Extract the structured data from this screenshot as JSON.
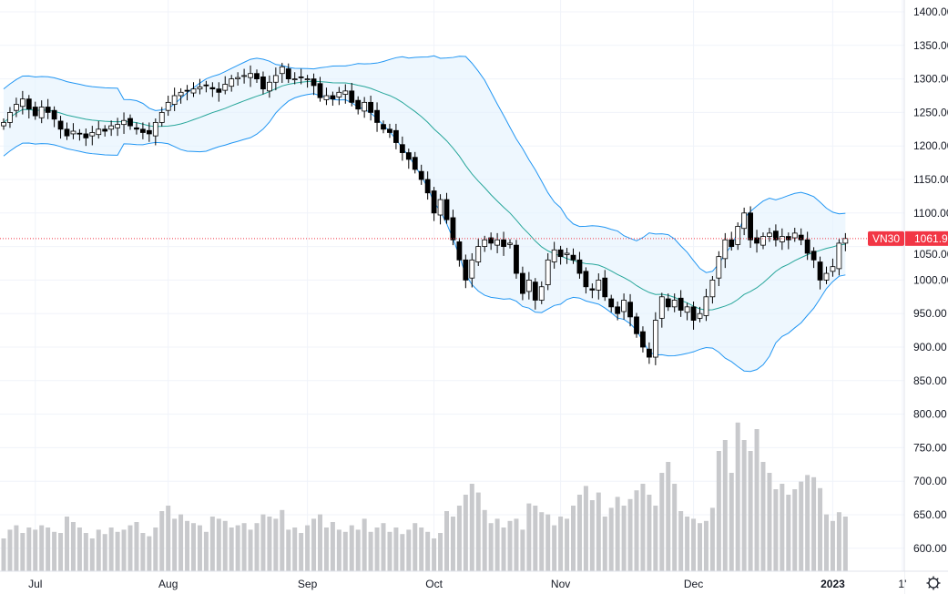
{
  "chart_data": {
    "type": "candlestick",
    "symbol": "VN30",
    "last_price_label": "1061.90",
    "last_price": 1061.9,
    "ylim": [
      575,
      1410
    ],
    "y_ticks": [
      600,
      650,
      700,
      750,
      800,
      850,
      900,
      950,
      1000,
      1050,
      1100,
      1150,
      1200,
      1250,
      1300,
      1350,
      1400
    ],
    "y_tick_labels": [
      "600.00",
      "650.00",
      "700.00",
      "750.00",
      "800.00",
      "850.00",
      "900.00",
      "950.00",
      "1000.00",
      "1050.00",
      "1100.00",
      "1150.00",
      "1200.00",
      "1250.00",
      "1300.00",
      "1350.00",
      "1400.00"
    ],
    "x_labels": [
      {
        "text": "Jul",
        "index": 5
      },
      {
        "text": "Aug",
        "index": 26
      },
      {
        "text": "Sep",
        "index": 48
      },
      {
        "text": "Oct",
        "index": 68
      },
      {
        "text": "Nov",
        "index": 88
      },
      {
        "text": "Dec",
        "index": 109
      },
      {
        "text": "2023",
        "index": 131,
        "bold": true
      },
      {
        "text": "1'",
        "index": 142
      }
    ],
    "closes": [
      1235,
      1250,
      1262,
      1270,
      1255,
      1245,
      1258,
      1250,
      1240,
      1225,
      1215,
      1222,
      1218,
      1212,
      1220,
      1225,
      1222,
      1230,
      1232,
      1238,
      1230,
      1225,
      1220,
      1218,
      1235,
      1250,
      1265,
      1275,
      1280,
      1282,
      1285,
      1288,
      1290,
      1285,
      1280,
      1292,
      1300,
      1302,
      1305,
      1308,
      1300,
      1285,
      1295,
      1305,
      1318,
      1300,
      1300,
      1302,
      1300,
      1290,
      1272,
      1275,
      1270,
      1280,
      1282,
      1265,
      1255,
      1265,
      1250,
      1235,
      1225,
      1220,
      1205,
      1190,
      1180,
      1165,
      1150,
      1130,
      1100,
      1120,
      1090,
      1060,
      1030,
      1000,
      1030,
      1050,
      1060,
      1055,
      1060,
      1050,
      1055,
      1010,
      980,
      1000,
      970,
      990,
      1030,
      1045,
      1035,
      1040,
      1030,
      1010,
      990,
      985,
      1000,
      975,
      960,
      950,
      970,
      945,
      920,
      900,
      885,
      940,
      975,
      960,
      970,
      955,
      960,
      940,
      950,
      975,
      1000,
      1035,
      1060,
      1050,
      1080,
      1100,
      1060,
      1055,
      1065,
      1070,
      1060,
      1065,
      1060,
      1070,
      1060,
      1040,
      1030,
      1000,
      1010,
      1020,
      1055,
      1062
    ],
    "volumes": [
      30,
      38,
      42,
      35,
      40,
      38,
      42,
      40,
      36,
      35,
      50,
      45,
      40,
      35,
      30,
      38,
      34,
      40,
      36,
      38,
      42,
      45,
      35,
      32,
      40,
      55,
      60,
      48,
      52,
      46,
      44,
      42,
      36,
      50,
      48,
      46,
      40,
      42,
      44,
      38,
      44,
      52,
      50,
      48,
      56,
      38,
      40,
      35,
      42,
      48,
      52,
      40,
      45,
      38,
      36,
      42,
      38,
      48,
      36,
      40,
      44,
      36,
      40,
      34,
      38,
      44,
      40,
      36,
      30,
      35,
      55,
      50,
      60,
      70,
      80,
      72,
      56,
      44,
      48,
      40,
      46,
      48,
      38,
      62,
      60,
      54,
      52,
      42,
      50,
      48,
      60,
      70,
      78,
      65,
      72,
      50,
      58,
      68,
      60,
      66,
      74,
      80,
      70,
      60,
      90,
      100,
      80,
      55,
      50,
      48,
      44,
      46,
      58,
      110,
      120,
      90,
      136,
      120,
      110,
      130,
      100,
      90,
      75,
      80,
      70,
      75,
      82,
      88,
      86,
      76,
      52,
      46,
      54,
      50
    ],
    "bollinger": {
      "period": 20,
      "mult": 2
    },
    "colors": {
      "up": "#ffffff",
      "down": "#000000",
      "band": "#2196f3",
      "basis": "#26a69a",
      "fill": "#e3f2fd",
      "volume": "#c8c9cc",
      "last": "#f23645"
    }
  }
}
